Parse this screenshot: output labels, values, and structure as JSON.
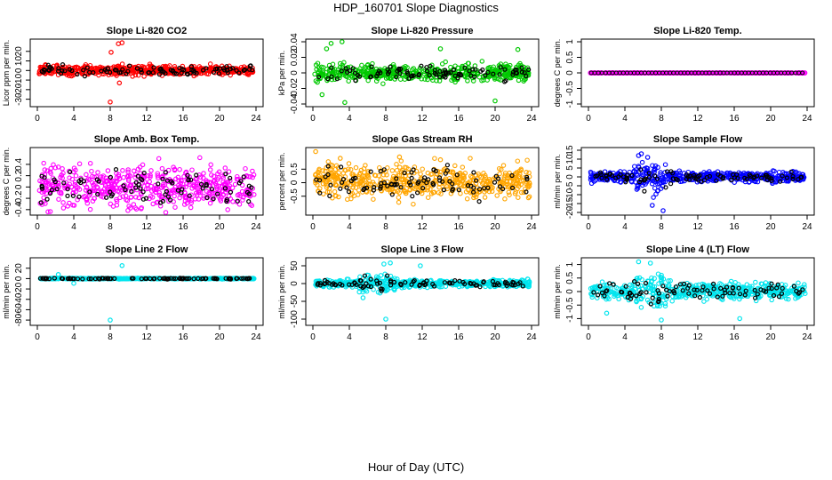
{
  "figure": {
    "title": "HDP_160701  Slope Diagnostics",
    "xlabel": "Hour of Day (UTC)"
  },
  "chart_data": [
    {
      "type": "scatter",
      "title": "Slope Li-820 CO2",
      "ylabel": "Licor ppm per min.",
      "xlim": [
        0,
        24
      ],
      "ylim": [
        -35,
        30
      ],
      "xticks": [
        0,
        4,
        8,
        12,
        16,
        20,
        24
      ],
      "yticks": [
        -30,
        -20,
        -10,
        0,
        10,
        20
      ],
      "color": "#ff0000",
      "spread": 4.5,
      "bursts": [],
      "outliers": [
        {
          "x": 8.0,
          "y": -33
        },
        {
          "x": 8.1,
          "y": 19
        },
        {
          "x": 8.9,
          "y": 28
        },
        {
          "x": 9.3,
          "y": 29
        },
        {
          "x": 9.0,
          "y": -13
        }
      ]
    },
    {
      "type": "scatter",
      "title": "Slope Li-820 Pressure",
      "ylabel": "kPa per min.",
      "xlim": [
        0,
        24
      ],
      "ylim": [
        -0.04,
        0.04
      ],
      "xticks": [
        0,
        4,
        8,
        12,
        16,
        20,
        24
      ],
      "yticks": [
        -0.04,
        -0.02,
        0,
        0.02,
        0.04
      ],
      "color": "#00c800",
      "spread": 0.009,
      "bursts": [],
      "outliers": [
        {
          "x": 2.0,
          "y": 0.038
        },
        {
          "x": 3.2,
          "y": 0.04
        },
        {
          "x": 1.0,
          "y": -0.028
        },
        {
          "x": 1.5,
          "y": 0.031
        },
        {
          "x": 3.5,
          "y": -0.038
        },
        {
          "x": 14.0,
          "y": 0.031
        },
        {
          "x": 20.0,
          "y": -0.036
        },
        {
          "x": 22.5,
          "y": 0.03
        },
        {
          "x": 0.5,
          "y": -0.012
        }
      ]
    },
    {
      "type": "scatter",
      "title": "Slope Li-820 Temp.",
      "ylabel": "degrees C per min.",
      "xlim": [
        0,
        24
      ],
      "ylim": [
        -1.0,
        1.0
      ],
      "xticks": [
        0,
        4,
        8,
        12,
        16,
        20,
        24
      ],
      "yticks": [
        -1.0,
        -0.5,
        0.0,
        0.5,
        1.0
      ],
      "color": "#ff00ff",
      "spread": 0.0,
      "bursts": [],
      "outliers": []
    },
    {
      "type": "scatter",
      "title": "Slope Amb. Box Temp.",
      "ylabel": "degrees C per min.",
      "xlim": [
        0,
        24
      ],
      "ylim": [
        -0.45,
        0.65
      ],
      "xticks": [
        0,
        4,
        8,
        12,
        16,
        20,
        24
      ],
      "yticks": [
        -0.4,
        -0.2,
        0,
        0.2,
        0.4
      ],
      "color": "#ff00ff",
      "spread": 0.32,
      "bursts": [],
      "outliers": []
    },
    {
      "type": "scatter",
      "title": "Slope Gas Stream RH",
      "ylabel": "percent per min.",
      "xlim": [
        0,
        24
      ],
      "ylim": [
        -1.1,
        1.2
      ],
      "xticks": [
        0,
        4,
        8,
        12,
        16,
        20,
        24
      ],
      "yticks": [
        -0.5,
        0,
        0.5
      ],
      "color": "#ffa500",
      "spread": 0.55,
      "bursts": [],
      "outliers": [
        {
          "x": 0.3,
          "y": 1.15
        },
        {
          "x": 9.5,
          "y": 0.95
        },
        {
          "x": 14.0,
          "y": 0.85
        },
        {
          "x": 3.0,
          "y": 0.9
        }
      ]
    },
    {
      "type": "scatter",
      "title": "Slope Sample Flow",
      "ylabel": "ml/min per min.",
      "xlim": [
        0,
        24
      ],
      "ylim": [
        -20,
        15
      ],
      "xticks": [
        0,
        4,
        8,
        12,
        16,
        20,
        24
      ],
      "yticks": [
        -20,
        -15,
        -10,
        -5,
        0,
        5,
        10,
        15
      ],
      "color": "#0000ff",
      "spread": 2.5,
      "bursts": [
        {
          "from": 5.0,
          "to": 8.5,
          "spread": 7
        }
      ],
      "outliers": [
        {
          "x": 5.5,
          "y": 12
        },
        {
          "x": 5.8,
          "y": 13
        },
        {
          "x": 8.2,
          "y": -19
        },
        {
          "x": 7.0,
          "y": -16
        },
        {
          "x": 6.5,
          "y": 11
        }
      ]
    },
    {
      "type": "scatter",
      "title": "Slope Line 2 Flow",
      "ylabel": "ml/min per min.",
      "xlim": [
        0,
        24
      ],
      "ylim": [
        -85,
        35
      ],
      "xticks": [
        0,
        4,
        8,
        12,
        16,
        20,
        24
      ],
      "yticks": [
        -80,
        -60,
        -40,
        -20,
        0,
        20
      ],
      "color": "#00e5ee",
      "spread": 0.8,
      "bursts": [],
      "outliers": [
        {
          "x": 8.0,
          "y": -80
        },
        {
          "x": 9.3,
          "y": 25
        },
        {
          "x": 4.0,
          "y": -9
        },
        {
          "x": 2.3,
          "y": 8
        }
      ]
    },
    {
      "type": "scatter",
      "title": "Slope Line 3 Flow",
      "ylabel": "ml/min per min.",
      "xlim": [
        0,
        24
      ],
      "ylim": [
        -110,
        65
      ],
      "xticks": [
        0,
        4,
        8,
        12,
        16,
        20,
        24
      ],
      "yticks": [
        -100,
        -50,
        0,
        50
      ],
      "color": "#00e5ee",
      "spread": 9,
      "bursts": [
        {
          "from": 5.0,
          "to": 9.0,
          "spread": 22
        }
      ],
      "outliers": [
        {
          "x": 8.0,
          "y": -100
        },
        {
          "x": 7.8,
          "y": 55
        },
        {
          "x": 8.5,
          "y": 58
        },
        {
          "x": 11.8,
          "y": 50
        },
        {
          "x": 5.5,
          "y": -40
        }
      ]
    },
    {
      "type": "scatter",
      "title": "Slope Line 4 (LT) Flow",
      "ylabel": "ml/min per min.",
      "xlim": [
        0,
        24
      ],
      "ylim": [
        -1.15,
        1.15
      ],
      "xticks": [
        0,
        4,
        8,
        12,
        16,
        20,
        24
      ],
      "yticks": [
        -1.0,
        -0.5,
        0.0,
        0.5,
        1.0
      ],
      "color": "#00e5ee",
      "spread": 0.28,
      "bursts": [
        {
          "from": 5.0,
          "to": 9.0,
          "spread": 0.55
        }
      ],
      "outliers": [
        {
          "x": 5.5,
          "y": 1.1
        },
        {
          "x": 6.8,
          "y": 1.05
        },
        {
          "x": 8.0,
          "y": -1.05
        },
        {
          "x": 16.6,
          "y": -1.0
        },
        {
          "x": 2.0,
          "y": -0.8
        }
      ]
    }
  ]
}
